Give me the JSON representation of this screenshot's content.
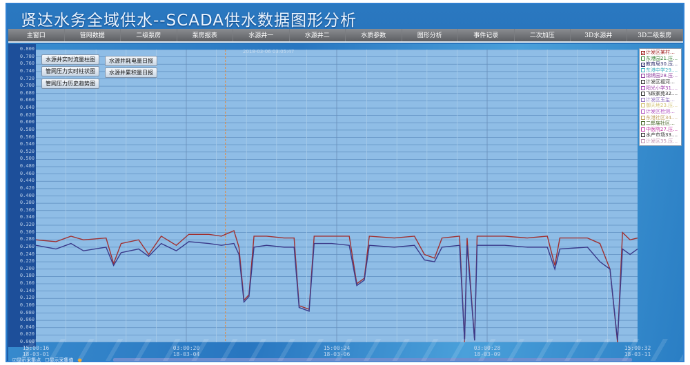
{
  "title": "贤达水务全域供水--SCADA供水数据图形分析",
  "nav": [
    "主窗口",
    "管网数据",
    "二级泵房",
    "泵房报表",
    "水源井一",
    "水源井二",
    "水质参数",
    "图形分析",
    "事件记录",
    "二次加压",
    "3D水源井",
    "3D二级泵房"
  ],
  "buttons": {
    "b1": "水源井实时流量柱图",
    "b2": "管网压力实时柱状图",
    "b3": "管网压力历史趋势图",
    "b4": "水源井耗电量日报",
    "b5": "水源井累积量日报"
  },
  "cursor_timestamp": "2018-03-06 03:05:47",
  "legend": [
    {
      "label": "计发区某村…",
      "checked": true,
      "color": "#a02020"
    },
    {
      "label": "东港园21.压…",
      "checked": false,
      "color": "#2a7a2a"
    },
    {
      "label": "教育局30.压…",
      "checked": true,
      "color": "#303070"
    },
    {
      "label": "东港中学29.…",
      "checked": false,
      "color": "#40b0c0"
    },
    {
      "label": "锦绣园28.压…",
      "checked": false,
      "color": "#9040a0"
    },
    {
      "label": "计发区福河…",
      "checked": false,
      "color": "#333333"
    },
    {
      "label": "阳光小学31.…",
      "checked": false,
      "color": "#a040b0"
    },
    {
      "label": "飞跃家苑32.…",
      "checked": false,
      "color": "#222222"
    },
    {
      "label": "计发区玉玺…",
      "checked": false,
      "color": "#9070c0"
    },
    {
      "label": "御天地23.压…",
      "checked": false,
      "color": "#d0c070"
    },
    {
      "label": "计发区检测…",
      "checked": false,
      "color": "#b050c0"
    },
    {
      "label": "东港社区34.…",
      "checked": false,
      "color": "#c0a060"
    },
    {
      "label": "二郎庙社区…",
      "checked": false,
      "color": "#406020"
    },
    {
      "label": "中医院27.压…",
      "checked": false,
      "color": "#c030a0"
    },
    {
      "label": "水产市场33.…",
      "checked": false,
      "color": "#303030"
    },
    {
      "label": "计发区35.压…",
      "checked": false,
      "color": "#c090b0"
    }
  ],
  "bottom": {
    "show_points": "显示采集点",
    "show_values": "显示采集值"
  },
  "chart_data": {
    "type": "line",
    "ylim": [
      0,
      0.8
    ],
    "ytick_step": 0.02,
    "grid": true,
    "legend_position": "right",
    "xtick_labels": [
      [
        "15:00:16",
        "18-03-01"
      ],
      [
        "03:00:20",
        "18-03-04"
      ],
      [
        "15:00:24",
        "18-03-06"
      ],
      [
        "03:00:28",
        "18-03-09"
      ],
      [
        "15:00:32",
        "18-03-11"
      ]
    ],
    "x": [
      "03-01 15:00",
      "03-01 23:00",
      "03-02 05:00",
      "03-02 10:00",
      "03-02 19:00",
      "03-02 22:00",
      "03-03 01:00",
      "03-03 08:00",
      "03-03 12:00",
      "03-03 17:00",
      "03-03 23:00",
      "03-04 04:00",
      "03-04 12:00",
      "03-04 17:00",
      "03-04 22:00",
      "03-05 00:00",
      "03-05 02:00",
      "03-05 04:00",
      "03-05 06:00",
      "03-05 11:00",
      "03-05 18:00",
      "03-05 22:00",
      "03-06 00:00",
      "03-06 04:00",
      "03-06 06:00",
      "03-06 13:00",
      "03-06 20:00",
      "03-06 23:00",
      "03-07 02:00",
      "03-07 04:00",
      "03-07 14:00",
      "03-07 22:00",
      "03-08 02:00",
      "03-08 06:00",
      "03-08 09:00",
      "03-08 16:00",
      "03-08 18:00",
      "03-08 19:00",
      "03-08 22:00",
      "03-08 23:00",
      "03-09 10:00",
      "03-09 19:00",
      "03-10 03:00",
      "03-10 06:00",
      "03-10 08:00",
      "03-10 19:00",
      "03-11 00:00",
      "03-11 04:00",
      "03-11 07:00",
      "03-11 09:00",
      "03-11 12:00",
      "03-11 15:00"
    ],
    "series": [
      {
        "color": "#a03030",
        "values": [
          0.28,
          0.275,
          0.29,
          0.28,
          0.285,
          0.215,
          0.27,
          0.28,
          0.24,
          0.29,
          0.265,
          0.295,
          0.295,
          0.29,
          0.305,
          0.26,
          0.115,
          0.13,
          0.29,
          0.29,
          0.285,
          0.285,
          0.1,
          0.09,
          0.29,
          0.29,
          0.29,
          0.16,
          0.175,
          0.29,
          0.285,
          0.29,
          0.24,
          0.23,
          0.285,
          0.29,
          0.0,
          0.285,
          0.005,
          0.29,
          0.29,
          0.285,
          0.29,
          0.21,
          0.285,
          0.285,
          0.27,
          0.2,
          0.0,
          0.3,
          0.28,
          0.285
        ]
      },
      {
        "color": "#3a3a8a",
        "values": [
          0.265,
          0.255,
          0.27,
          0.25,
          0.26,
          0.21,
          0.245,
          0.255,
          0.235,
          0.27,
          0.25,
          0.275,
          0.27,
          0.265,
          0.27,
          0.24,
          0.11,
          0.125,
          0.26,
          0.265,
          0.26,
          0.26,
          0.095,
          0.085,
          0.27,
          0.27,
          0.265,
          0.155,
          0.17,
          0.265,
          0.26,
          0.265,
          0.225,
          0.22,
          0.26,
          0.265,
          0.005,
          0.265,
          0.005,
          0.265,
          0.265,
          0.26,
          0.26,
          0.2,
          0.255,
          0.26,
          0.22,
          0.2,
          0.005,
          0.255,
          0.24,
          0.255
        ]
      }
    ]
  }
}
